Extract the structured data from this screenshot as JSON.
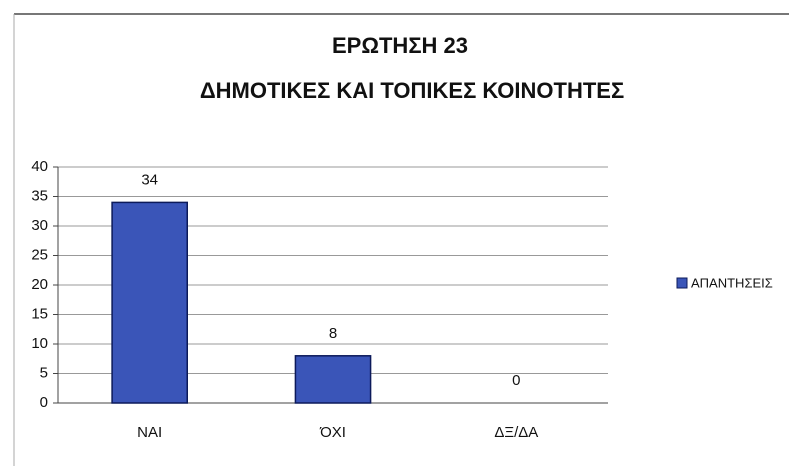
{
  "chart_data": {
    "type": "bar",
    "title": "ΕΡΩΤΗΣΗ 23",
    "subtitle": "ΔΗΜΟΤΙΚΕΣ ΚΑΙ ΤΟΠΙΚΕΣ ΚΟΙΝΟΤΗΤΕΣ",
    "categories": [
      "ΝΑΙ",
      "ΌΧΙ",
      "ΔΞ/ΔΑ"
    ],
    "series": [
      {
        "name": "ΑΠΑΝΤΗΣΕΙΣ",
        "color": "#3a55b8",
        "values": [
          34,
          8,
          0
        ]
      }
    ],
    "ylim": [
      0,
      40
    ],
    "yticks": [
      0,
      5,
      10,
      15,
      20,
      25,
      30,
      35,
      40
    ],
    "grid": true,
    "legend": "right"
  }
}
